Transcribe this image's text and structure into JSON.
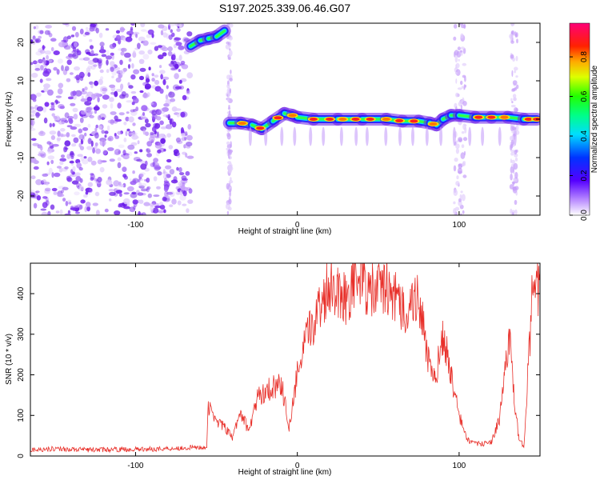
{
  "title": "S197.2025.339.06.46.G07",
  "colors": {
    "snr_line": "#e8302a",
    "axis": "#000000",
    "background": "#ffffff",
    "noise": "#8a3bf0"
  },
  "chart_data": [
    {
      "type": "heatmap",
      "name": "spectrogram",
      "xlabel": "Height of straight line (km)",
      "ylabel": "Frequency (Hz)",
      "xlim": [
        -165,
        150
      ],
      "ylim": [
        -25,
        25
      ],
      "xticks": [
        -100,
        0,
        100
      ],
      "xtick_labels": [
        "-100",
        "0",
        "100"
      ],
      "yticks": [
        -20,
        -10,
        0,
        10,
        20
      ],
      "ytick_labels": [
        "-20",
        "-10",
        "0",
        "10",
        "20"
      ],
      "colorbar": {
        "label": "Normalized spectral amplitude",
        "range": [
          0,
          0.97
        ],
        "ticks": [
          0,
          0.2,
          0.4,
          0.6,
          0.8
        ],
        "tick_labels": [
          "0.0",
          "0.2",
          "0.4",
          "0.6",
          "0.8"
        ],
        "colormap": "rainbow"
      },
      "noise_region_x": [
        -165,
        -66
      ],
      "signal_track": [
        {
          "x": -66,
          "y": 19
        },
        {
          "x": -60,
          "y": 20.5
        },
        {
          "x": -55,
          "y": 21
        },
        {
          "x": -50,
          "y": 21.5
        },
        {
          "x": -45,
          "y": 23
        },
        {
          "x": -42,
          "y": -1
        },
        {
          "x": -35,
          "y": -1
        },
        {
          "x": -28,
          "y": -1.5
        },
        {
          "x": -22,
          "y": -2.5
        },
        {
          "x": -15,
          "y": -0.5
        },
        {
          "x": -8,
          "y": 1.5
        },
        {
          "x": -3,
          "y": 1
        },
        {
          "x": 0,
          "y": 0.5
        },
        {
          "x": 10,
          "y": 0
        },
        {
          "x": 25,
          "y": 0
        },
        {
          "x": 40,
          "y": 0
        },
        {
          "x": 55,
          "y": 0
        },
        {
          "x": 65,
          "y": -0.5
        },
        {
          "x": 75,
          "y": -0.5
        },
        {
          "x": 82,
          "y": -1
        },
        {
          "x": 86,
          "y": -1.5
        },
        {
          "x": 90,
          "y": 0
        },
        {
          "x": 95,
          "y": 1
        },
        {
          "x": 100,
          "y": 1
        },
        {
          "x": 110,
          "y": 0.5
        },
        {
          "x": 120,
          "y": 0.5
        },
        {
          "x": 130,
          "y": 0.5
        },
        {
          "x": 140,
          "y": 0
        },
        {
          "x": 148,
          "y": 0
        }
      ]
    },
    {
      "type": "line",
      "name": "snr",
      "xlabel": "Height of straight line (km)",
      "ylabel": "SNR (10 * v/v)",
      "xlim": [
        -165,
        150
      ],
      "ylim": [
        0,
        475
      ],
      "xticks": [
        -100,
        0,
        100
      ],
      "xtick_labels": [
        "-100",
        "0",
        "100"
      ],
      "yticks": [
        0,
        100,
        200,
        300,
        400
      ],
      "ytick_labels": [
        "0",
        "100",
        "200",
        "300",
        "400"
      ],
      "series": [
        {
          "name": "SNR",
          "x": [
            -165,
            -150,
            -130,
            -110,
            -90,
            -70,
            -56,
            -55,
            -50,
            -45,
            -40,
            -35,
            -30,
            -25,
            -20,
            -15,
            -10,
            -5,
            0,
            5,
            10,
            15,
            20,
            25,
            30,
            35,
            40,
            45,
            50,
            55,
            60,
            65,
            70,
            75,
            80,
            85,
            90,
            95,
            100,
            105,
            110,
            115,
            120,
            125,
            128,
            131,
            134,
            137,
            140,
            145,
            150
          ],
          "y": [
            15,
            18,
            15,
            16,
            17,
            20,
            22,
            120,
            90,
            70,
            45,
            110,
            60,
            140,
            160,
            170,
            180,
            70,
            200,
            280,
            330,
            380,
            430,
            410,
            390,
            430,
            440,
            400,
            410,
            420,
            390,
            360,
            370,
            400,
            250,
            180,
            300,
            200,
            100,
            40,
            30,
            30,
            35,
            90,
            200,
            300,
            140,
            40,
            25,
            380,
            420
          ]
        }
      ]
    }
  ]
}
